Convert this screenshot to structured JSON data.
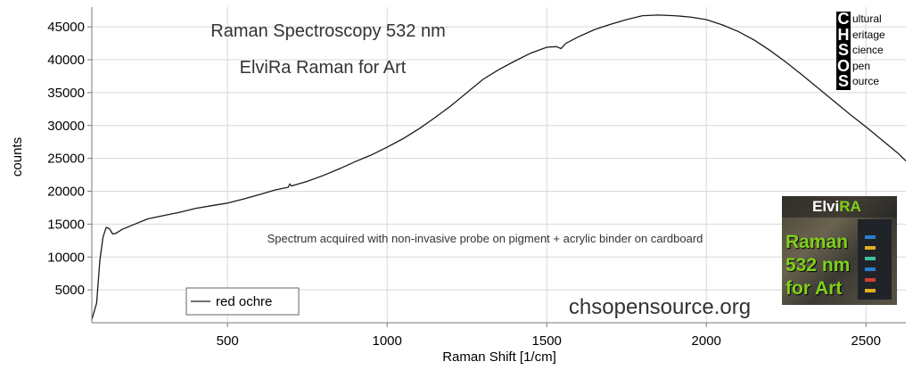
{
  "annotations": {
    "title_line1": "Raman Spectroscopy 532 nm",
    "title_line2": "ElviRa Raman for Art",
    "note": "Spectrum acquired with non-invasive probe on pigment + acrylic binder on cardboard",
    "website": "chsopensource.org"
  },
  "logo": {
    "letters": [
      "C",
      "H",
      "S",
      "O",
      "S"
    ],
    "words": [
      "ultural",
      "eritage",
      "cience",
      "pen",
      "ource"
    ]
  },
  "badge": {
    "brand_prefix": "Elvi",
    "brand_suffix": "RA",
    "line1": "Raman",
    "line2": "532 nm",
    "line3": "for Art"
  },
  "colors": {
    "line": "#1a1a1a",
    "axis": "#7a7a7a",
    "grid": "#d8d8d8",
    "accent_green": "#7fd11a"
  },
  "chart_data": {
    "type": "line",
    "xlabel": "Raman Shift [1/cm]",
    "ylabel": "counts",
    "xlim": [
      75,
      2625
    ],
    "ylim": [
      0,
      48000
    ],
    "xticks": [
      500,
      1000,
      1500,
      2000,
      2500
    ],
    "yticks": [
      5000,
      10000,
      15000,
      20000,
      25000,
      30000,
      35000,
      40000,
      45000
    ],
    "grid": true,
    "legend_position": "bottom-left",
    "series": [
      {
        "name": "red ochre",
        "x": [
          75,
          90,
          100,
          110,
          120,
          130,
          140,
          150,
          170,
          200,
          250,
          300,
          350,
          400,
          450,
          500,
          550,
          600,
          650,
          690,
          695,
          700,
          750,
          800,
          850,
          900,
          950,
          1000,
          1050,
          1100,
          1150,
          1200,
          1250,
          1300,
          1350,
          1400,
          1450,
          1500,
          1530,
          1545,
          1560,
          1600,
          1650,
          1700,
          1750,
          1800,
          1850,
          1900,
          1950,
          2000,
          2050,
          2100,
          2150,
          2200,
          2250,
          2300,
          2350,
          2400,
          2450,
          2500,
          2550,
          2600,
          2625
        ],
        "y": [
          500,
          3000,
          9500,
          13000,
          14500,
          14300,
          13500,
          13600,
          14200,
          14800,
          15800,
          16300,
          16800,
          17400,
          17800,
          18200,
          18800,
          19500,
          20200,
          20600,
          21100,
          20800,
          21500,
          22400,
          23400,
          24500,
          25500,
          26700,
          28000,
          29500,
          31200,
          33000,
          35000,
          37000,
          38500,
          39800,
          41000,
          41900,
          42000,
          41700,
          42500,
          43500,
          44600,
          45400,
          46100,
          46700,
          46800,
          46700,
          46500,
          46100,
          45300,
          44300,
          43000,
          41400,
          39600,
          37700,
          35700,
          33700,
          31700,
          29800,
          27800,
          25800,
          24600
        ]
      }
    ]
  }
}
